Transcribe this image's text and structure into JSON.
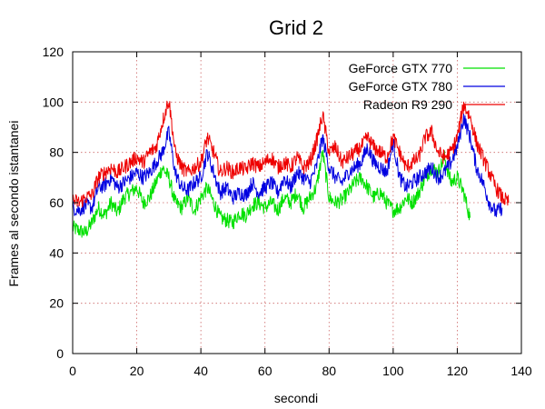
{
  "chart_data": {
    "type": "line",
    "title": "Grid 2",
    "xlabel": "secondi",
    "ylabel": "Frames al secondo istantanei",
    "xlim": [
      0,
      140
    ],
    "ylim": [
      0,
      120
    ],
    "xticks": [
      0,
      20,
      40,
      60,
      80,
      100,
      120,
      140
    ],
    "yticks": [
      0,
      20,
      40,
      60,
      80,
      100,
      120
    ],
    "grid": true,
    "legend_position": "top-right",
    "series": [
      {
        "name": "GeForce GTX 770",
        "color": "#00e000",
        "x": [
          0,
          2,
          4,
          6,
          8,
          10,
          12,
          14,
          16,
          18,
          20,
          22,
          24,
          26,
          28,
          30,
          32,
          34,
          36,
          38,
          40,
          42,
          44,
          46,
          48,
          50,
          52,
          54,
          56,
          58,
          60,
          62,
          64,
          66,
          68,
          70,
          72,
          74,
          76,
          78,
          80,
          82,
          84,
          86,
          88,
          90,
          92,
          94,
          96,
          98,
          100,
          102,
          104,
          106,
          108,
          110,
          112,
          114,
          116,
          118,
          120,
          122,
          124
        ],
        "y": [
          50,
          49,
          48,
          52,
          58,
          55,
          60,
          56,
          62,
          64,
          66,
          60,
          62,
          68,
          74,
          70,
          60,
          58,
          62,
          57,
          62,
          66,
          60,
          54,
          53,
          52,
          56,
          55,
          59,
          60,
          58,
          60,
          57,
          62,
          60,
          64,
          58,
          62,
          66,
          80,
          62,
          60,
          61,
          64,
          68,
          70,
          66,
          62,
          64,
          60,
          57,
          58,
          62,
          60,
          64,
          70,
          74,
          72,
          78,
          68,
          70,
          64,
          54
        ]
      },
      {
        "name": "GeForce GTX 780",
        "color": "#0000e0",
        "x": [
          0,
          2,
          4,
          6,
          8,
          10,
          12,
          14,
          16,
          18,
          20,
          22,
          24,
          26,
          28,
          30,
          32,
          34,
          36,
          38,
          40,
          42,
          44,
          46,
          48,
          50,
          52,
          54,
          56,
          58,
          60,
          62,
          64,
          66,
          68,
          70,
          72,
          74,
          76,
          78,
          80,
          82,
          84,
          86,
          88,
          90,
          92,
          94,
          96,
          98,
          100,
          102,
          104,
          106,
          108,
          110,
          112,
          114,
          116,
          118,
          120,
          122,
          124,
          126,
          128,
          130,
          132,
          134
        ],
        "y": [
          58,
          57,
          59,
          58,
          66,
          67,
          70,
          66,
          68,
          70,
          72,
          70,
          72,
          76,
          80,
          88,
          72,
          66,
          65,
          68,
          70,
          80,
          72,
          64,
          66,
          62,
          64,
          63,
          68,
          64,
          66,
          68,
          64,
          70,
          66,
          72,
          70,
          68,
          74,
          86,
          74,
          70,
          68,
          72,
          74,
          76,
          82,
          76,
          74,
          72,
          84,
          70,
          66,
          68,
          70,
          72,
          74,
          70,
          72,
          76,
          82,
          94,
          86,
          74,
          68,
          60,
          56,
          58
        ]
      },
      {
        "name": "Radeon R9 290",
        "color": "#ee0000",
        "x": [
          0,
          2,
          4,
          6,
          8,
          10,
          12,
          14,
          16,
          18,
          20,
          22,
          24,
          26,
          28,
          30,
          32,
          34,
          36,
          38,
          40,
          42,
          44,
          46,
          48,
          50,
          52,
          54,
          56,
          58,
          60,
          62,
          64,
          66,
          68,
          70,
          72,
          74,
          76,
          78,
          80,
          82,
          84,
          86,
          88,
          90,
          92,
          94,
          96,
          98,
          100,
          102,
          104,
          106,
          108,
          110,
          112,
          114,
          116,
          118,
          120,
          122,
          124,
          126,
          128,
          130,
          132,
          134,
          136
        ],
        "y": [
          61,
          60,
          62,
          63,
          70,
          72,
          74,
          72,
          74,
          76,
          78,
          76,
          80,
          82,
          92,
          101,
          80,
          74,
          72,
          74,
          76,
          86,
          80,
          72,
          74,
          72,
          74,
          73,
          76,
          74,
          76,
          78,
          74,
          76,
          74,
          78,
          74,
          76,
          84,
          95,
          80,
          82,
          76,
          78,
          80,
          82,
          86,
          82,
          80,
          78,
          86,
          80,
          74,
          76,
          78,
          86,
          88,
          80,
          78,
          80,
          86,
          99,
          94,
          84,
          78,
          72,
          66,
          62,
          60
        ]
      }
    ]
  }
}
